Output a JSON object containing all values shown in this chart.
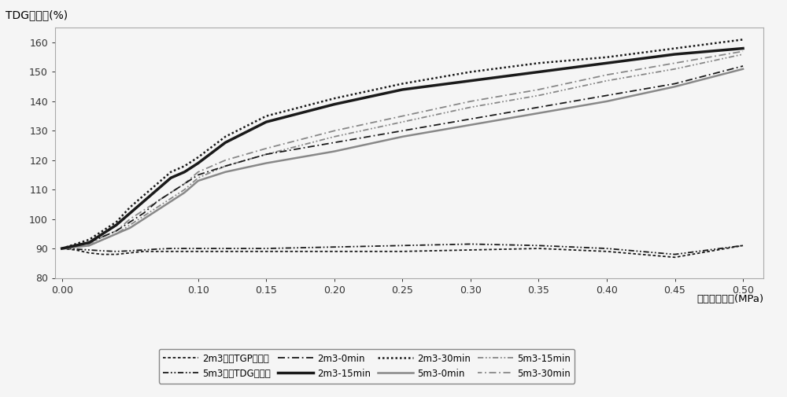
{
  "x": [
    0.0,
    0.01,
    0.02,
    0.03,
    0.04,
    0.05,
    0.06,
    0.07,
    0.08,
    0.09,
    0.1,
    0.12,
    0.15,
    0.2,
    0.25,
    0.3,
    0.35,
    0.4,
    0.45,
    0.5
  ],
  "series": {
    "2m3_inlet_TGP": [
      90,
      89.5,
      88.5,
      88,
      88,
      88.5,
      89,
      89,
      89,
      89,
      89,
      89,
      89,
      89,
      89,
      89.5,
      90,
      89,
      87,
      91
    ],
    "5m3_inlet_TDG": [
      90,
      89.8,
      89.5,
      89.2,
      89,
      89.2,
      89.5,
      89.8,
      90,
      90,
      90,
      90,
      90,
      90.5,
      91,
      91.5,
      91,
      90,
      88,
      91
    ],
    "2m3_0min": [
      90,
      91,
      92,
      94,
      96,
      99,
      102,
      106,
      109,
      112,
      115,
      118,
      122,
      126,
      130,
      134,
      138,
      142,
      146,
      152
    ],
    "2m3_15min": [
      90,
      91,
      92,
      95,
      98,
      102,
      106,
      110,
      114,
      116,
      119,
      126,
      133,
      139,
      144,
      147,
      150,
      153,
      156,
      158
    ],
    "2m3_30min": [
      90,
      91.5,
      93,
      96,
      99,
      104,
      108,
      112,
      116,
      118,
      121,
      128,
      135,
      141,
      146,
      150,
      153,
      155,
      158,
      161
    ],
    "5m3_0min": [
      90,
      90.5,
      91,
      93,
      95,
      97,
      100,
      103,
      106,
      109,
      113,
      116,
      119,
      123,
      128,
      132,
      136,
      140,
      145,
      151
    ],
    "5m3_15min": [
      90,
      90.5,
      91,
      93,
      95,
      98,
      101,
      104,
      107,
      110,
      114,
      118,
      122,
      128,
      133,
      138,
      142,
      147,
      151,
      156
    ],
    "5m3_30min": [
      90,
      91,
      91.5,
      94,
      96,
      100,
      103,
      106,
      109,
      112,
      116,
      120,
      124,
      130,
      135,
      140,
      144,
      149,
      153,
      157
    ]
  },
  "labels": {
    "2m3_inlet_TGP": "2m3进水TGP饱和度",
    "5m3_inlet_TDG": "5m3进水TDG饱和度",
    "2m3_0min": "2m3-0min",
    "2m3_15min": "2m3-15min",
    "2m3_30min": "2m3-30min",
    "5m3_0min": "5m3-0min",
    "5m3_15min": "5m3-15min",
    "5m3_30min": "5m3-30min"
  },
  "ylabel": "TDG饱和度(%)",
  "xlabel": "承压罐内压力(MPa)",
  "ylim": [
    80,
    165
  ],
  "xlim": [
    -0.005,
    0.515
  ],
  "yticks": [
    80,
    90,
    100,
    110,
    120,
    130,
    140,
    150,
    160
  ],
  "xticks": [
    0.0,
    0.1,
    0.15,
    0.2,
    0.25,
    0.3,
    0.35,
    0.4,
    0.45,
    0.5
  ],
  "background_color": "#f5f5f5",
  "plot_bg": "#f5f5f5",
  "line_color": "#1a1a1a",
  "gray_color": "#888888"
}
